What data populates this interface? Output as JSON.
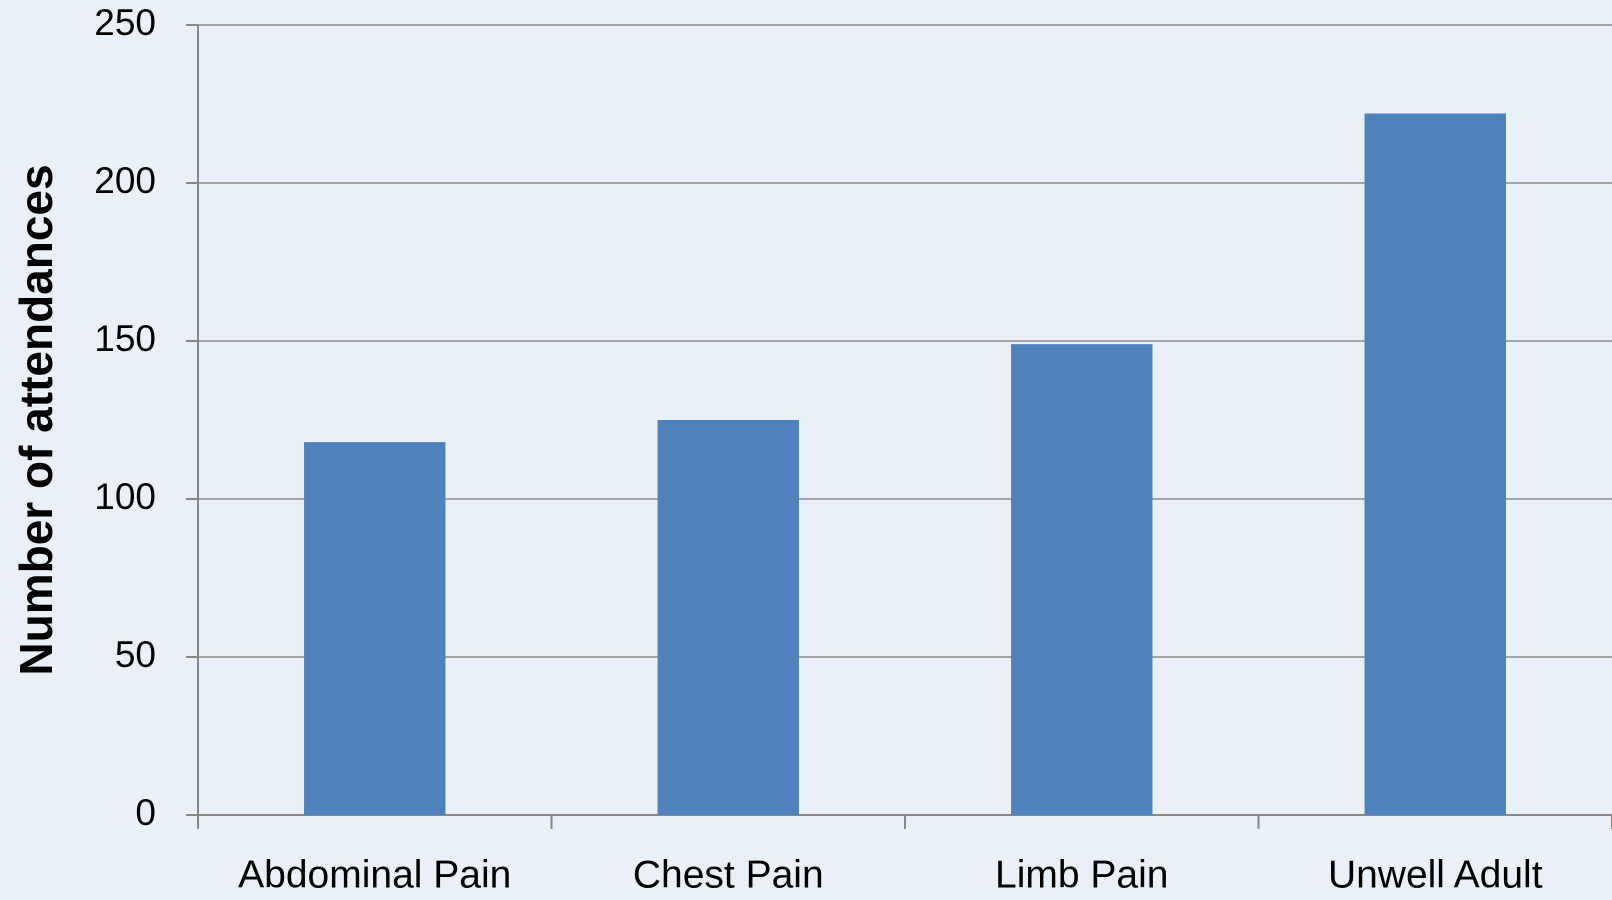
{
  "chart_data": {
    "type": "bar",
    "y_label": "Number of attendances",
    "categories": [
      "Abdominal Pain",
      "Chest Pain",
      "Limb Pain",
      "Unwell Adult"
    ],
    "values": [
      118,
      125,
      149,
      222
    ],
    "color": "#4f81bd",
    "ylim": [
      0,
      250
    ],
    "yticks": [
      0,
      50,
      100,
      150,
      200,
      250
    ],
    "grid": true
  }
}
